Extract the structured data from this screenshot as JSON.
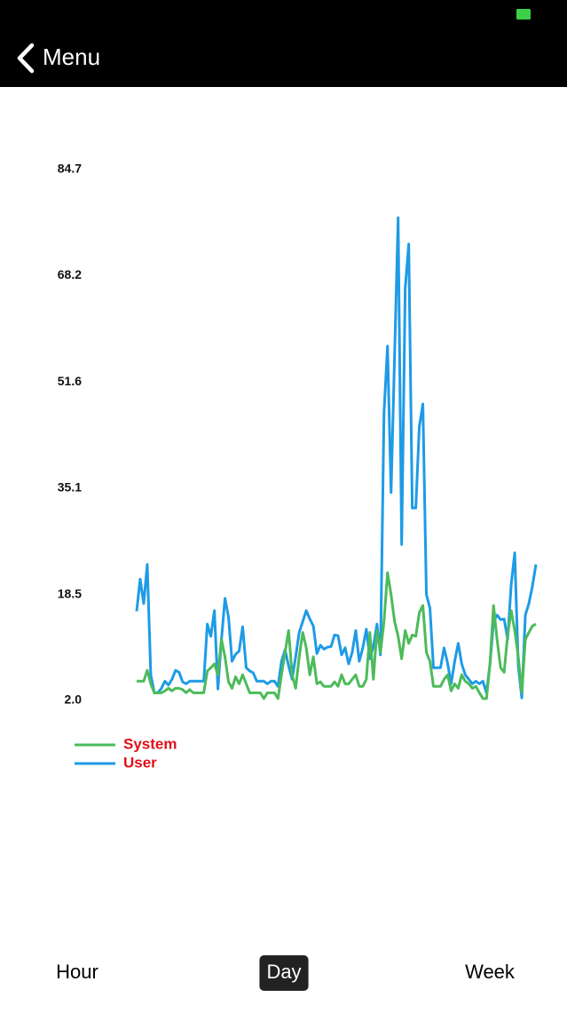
{
  "header": {
    "back_label": "Menu"
  },
  "chart_data": {
    "type": "line",
    "ylim": [
      2,
      84.7
    ],
    "yticks": [
      {
        "value": 2,
        "label": "2.0"
      },
      18.5,
      35.1,
      51.6,
      68.2,
      84.7
    ],
    "legend_color": "#e0101a",
    "series": [
      {
        "name": "System",
        "color": "#4cbb5a",
        "values": [
          5.0,
          5.0,
          5.0,
          6.7,
          4.6,
          3.2,
          3.2,
          3.2,
          3.5,
          3.9,
          3.5,
          3.9,
          3.9,
          3.7,
          3.2,
          3.7,
          3.2,
          3.2,
          3.2,
          3.2,
          6.6,
          7.1,
          7.7,
          6.0,
          11.5,
          8.8,
          4.9,
          3.9,
          5.7,
          4.6,
          6.0,
          4.6,
          3.2,
          3.2,
          3.2,
          3.2,
          2.3,
          3.2,
          3.2,
          3.2,
          2.3,
          6.0,
          9.5,
          12.9,
          6.0,
          3.9,
          8.8,
          12.6,
          10.2,
          6.0,
          8.8,
          4.6,
          4.9,
          4.2,
          4.2,
          4.2,
          4.9,
          4.2,
          6.0,
          4.6,
          4.6,
          5.3,
          6.0,
          4.2,
          4.2,
          5.3,
          12.6,
          5.3,
          12.9,
          9.5,
          14.3,
          21.9,
          18.5,
          14.3,
          12.0,
          8.5,
          12.9,
          10.9,
          12.2,
          12.0,
          15.7,
          16.8,
          9.5,
          8.1,
          4.2,
          4.2,
          4.2,
          5.3,
          6.0,
          3.5,
          4.6,
          3.9,
          6.0,
          5.0,
          4.6,
          3.9,
          4.2,
          3.2,
          2.3,
          2.3,
          7.7,
          16.8,
          11.5,
          7.1,
          6.4,
          12.2,
          16.0,
          12.9,
          8.8,
          3.2,
          11.5,
          12.6,
          13.6,
          13.9
        ]
      },
      {
        "name": "User",
        "color": "#1e9be6",
        "values": [
          15.9,
          20.9,
          17.1,
          23.2,
          6.0,
          3.2,
          3.2,
          3.9,
          5.0,
          4.4,
          5.3,
          6.7,
          6.4,
          4.9,
          4.6,
          5.0,
          5.0,
          5.0,
          5.0,
          5.0,
          13.9,
          12.0,
          16.0,
          3.8,
          11.5,
          17.9,
          15.0,
          8.1,
          9.2,
          9.7,
          13.5,
          7.1,
          6.6,
          6.3,
          5.0,
          5.0,
          5.0,
          4.6,
          5.0,
          5.0,
          4.2,
          8.1,
          9.9,
          7.4,
          5.3,
          8.8,
          12.6,
          14.3,
          16.0,
          14.7,
          13.6,
          9.3,
          10.6,
          10.0,
          10.3,
          10.4,
          12.2,
          12.1,
          9.1,
          10.2,
          7.7,
          9.5,
          12.9,
          8.1,
          10.2,
          13.1,
          8.5,
          10.4,
          13.9,
          9.1,
          46.8,
          57.2,
          34.4,
          55.8,
          77.2,
          26.3,
          66.2,
          73.1,
          32.0,
          32.0,
          44.7,
          48.2,
          18.5,
          16.4,
          7.1,
          7.1,
          7.1,
          10.2,
          7.8,
          4.6,
          8.1,
          10.9,
          7.7,
          6.0,
          5.3,
          4.6,
          5.0,
          4.6,
          5.0,
          3.2,
          7.7,
          14.3,
          15.3,
          14.6,
          14.7,
          11.5,
          20.1,
          25.0,
          7.4,
          2.4,
          15.3,
          17.1,
          19.8,
          23.2
        ]
      }
    ]
  },
  "tabs": {
    "items": [
      "Hour",
      "Day",
      "Week"
    ],
    "selected": 1
  }
}
